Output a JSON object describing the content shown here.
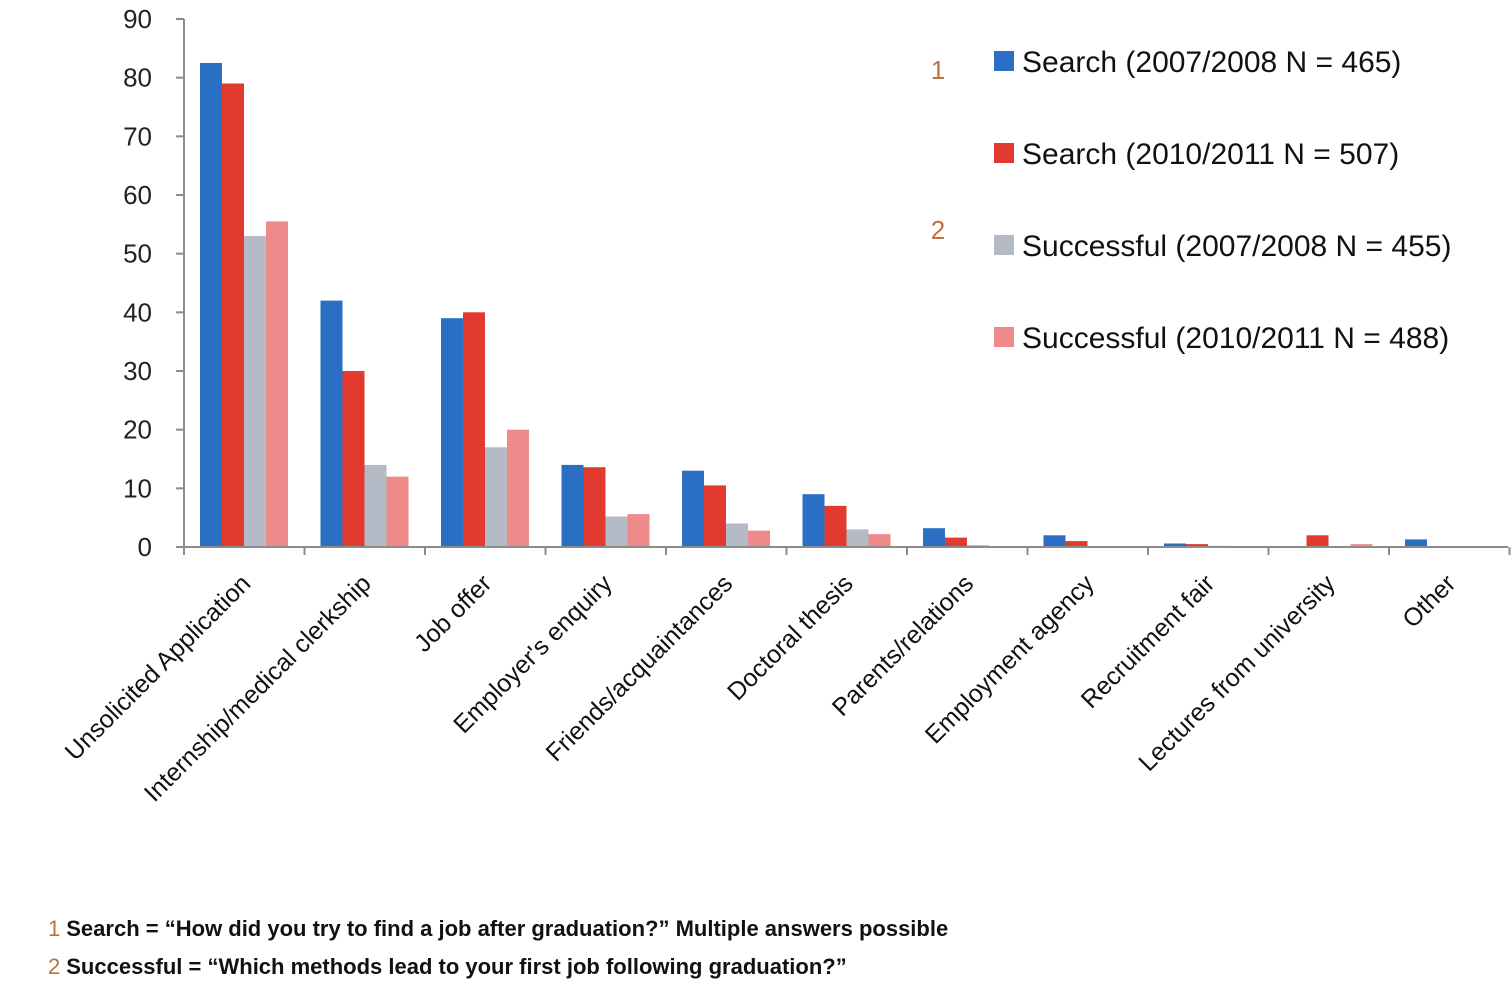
{
  "chart_data": {
    "type": "bar",
    "categories": [
      "Unsolicited Application",
      "Internship/medical clerkship",
      "Job offer",
      "Employer's enquiry",
      "Friends/acquaintances",
      "Doctoral thesis",
      "Parents/relations",
      "Employment agency",
      "Recruitment fair",
      "Lectures from university",
      "Other"
    ],
    "series": [
      {
        "name": "Search (2007/2008 N = 465)",
        "color": "#2a6fc4",
        "values": [
          82.5,
          42,
          39,
          14,
          13,
          9,
          3.2,
          2,
          0.6,
          0,
          1.3
        ]
      },
      {
        "name": "Search (2010/2011 N = 507)",
        "color": "#e23a2e",
        "values": [
          79,
          30,
          40,
          13.6,
          10.5,
          7,
          1.6,
          1,
          0.5,
          2,
          0
        ]
      },
      {
        "name": "Successful (2007/2008 N = 455)",
        "color": "#b4bac6",
        "values": [
          53,
          14,
          17,
          5.2,
          4,
          3,
          0.3,
          0,
          0.2,
          0,
          0
        ]
      },
      {
        "name": "Successful (2010/2011 N = 488)",
        "color": "#ee8a8a",
        "values": [
          55.5,
          12,
          20,
          5.6,
          2.8,
          2.2,
          0,
          0,
          0,
          0.5,
          0
        ]
      }
    ],
    "ylim": [
      0,
      90
    ],
    "yticks": [
      0,
      10,
      20,
      30,
      40,
      50,
      60,
      70,
      80,
      90
    ],
    "xlabel": "",
    "ylabel": "",
    "title": "",
    "grid": false,
    "legend_position": "top-right",
    "legend_groups": [
      {
        "marker": "1",
        "series": [
          0,
          1
        ]
      },
      {
        "marker": "2",
        "series": [
          2,
          3
        ]
      }
    ]
  },
  "footnotes": [
    {
      "num": "1",
      "text": "Search = “How did you try to find a job after graduation?” Multiple answers possible"
    },
    {
      "num": "2",
      "text": "Successful = “Which methods lead to your first job following graduation?”"
    }
  ]
}
